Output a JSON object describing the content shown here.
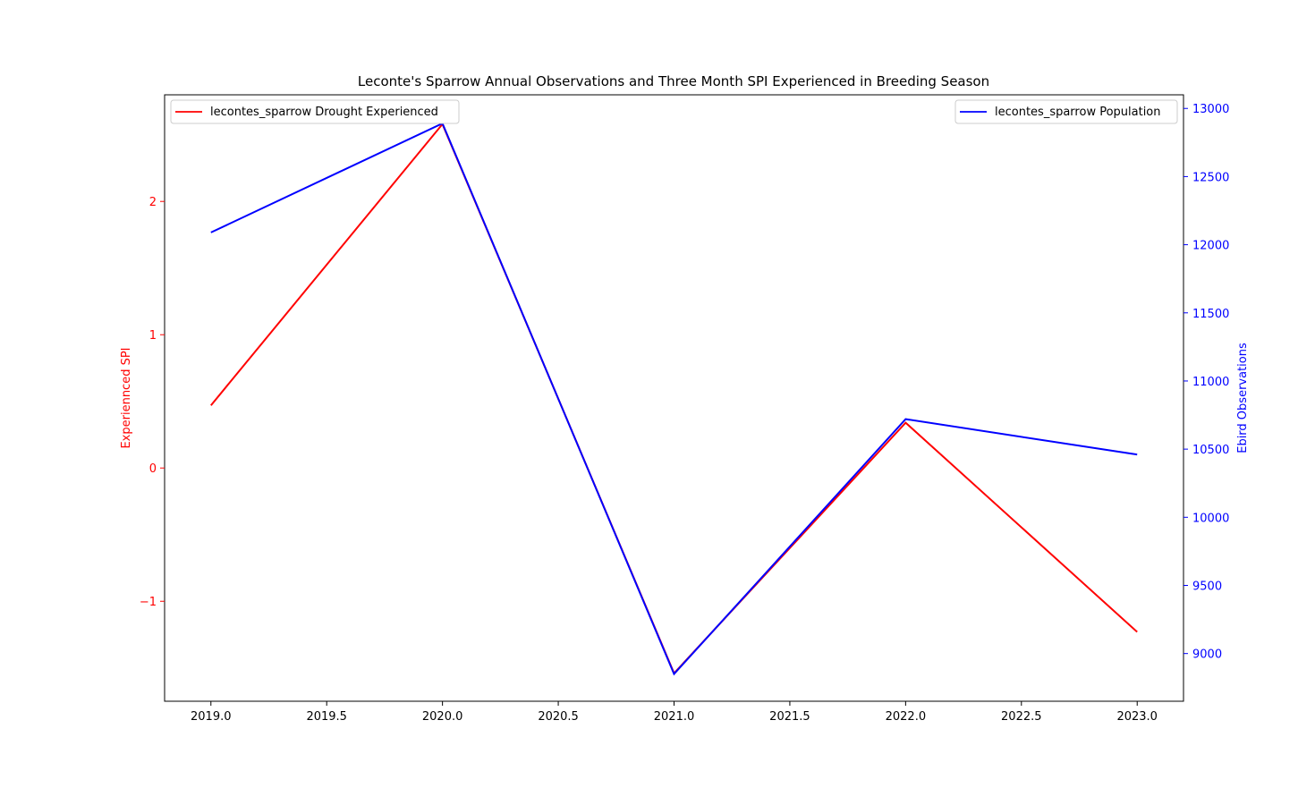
{
  "chart_data": {
    "type": "line",
    "title": "Leconte's Sparrow Annual Observations and Three Month SPI Experienced in Breeding Season",
    "x": [
      2019.0,
      2020.0,
      2021.0,
      2022.0,
      2023.0
    ],
    "x_ticks": [
      "2019.0",
      "2019.5",
      "2020.0",
      "2020.5",
      "2021.0",
      "2021.5",
      "2022.0",
      "2022.5",
      "2023.0"
    ],
    "xlim": [
      2018.8,
      2023.2
    ],
    "left_axis": {
      "label": "Experiennced SPI",
      "color": "#ff0000",
      "ylim": [
        -1.75,
        2.8
      ],
      "ticks": [
        -1,
        0,
        1,
        2
      ],
      "tick_labels": [
        "−1",
        "0",
        "1",
        "2"
      ]
    },
    "right_axis": {
      "label": "Ebird Observations",
      "color": "#0000ff",
      "ylim": [
        8650,
        13100
      ],
      "ticks": [
        9000,
        9500,
        10000,
        10500,
        11000,
        11500,
        12000,
        12500,
        13000
      ],
      "tick_labels": [
        "9000",
        "9500",
        "10000",
        "10500",
        "11000",
        "11500",
        "12000",
        "12500",
        "13000"
      ]
    },
    "series": [
      {
        "name": "lecontes_sparrow Drought Experienced",
        "axis": "left",
        "color": "#ff0000",
        "values": [
          0.47,
          2.58,
          -1.54,
          0.34,
          -1.23
        ]
      },
      {
        "name": "lecontes_sparrow Population",
        "axis": "right",
        "color": "#0000ff",
        "values": [
          12090,
          12890,
          8850,
          10720,
          10460
        ]
      }
    ],
    "legends": [
      {
        "series_index": 0,
        "placement": "top-left"
      },
      {
        "series_index": 1,
        "placement": "top-right"
      }
    ],
    "grid": false
  }
}
